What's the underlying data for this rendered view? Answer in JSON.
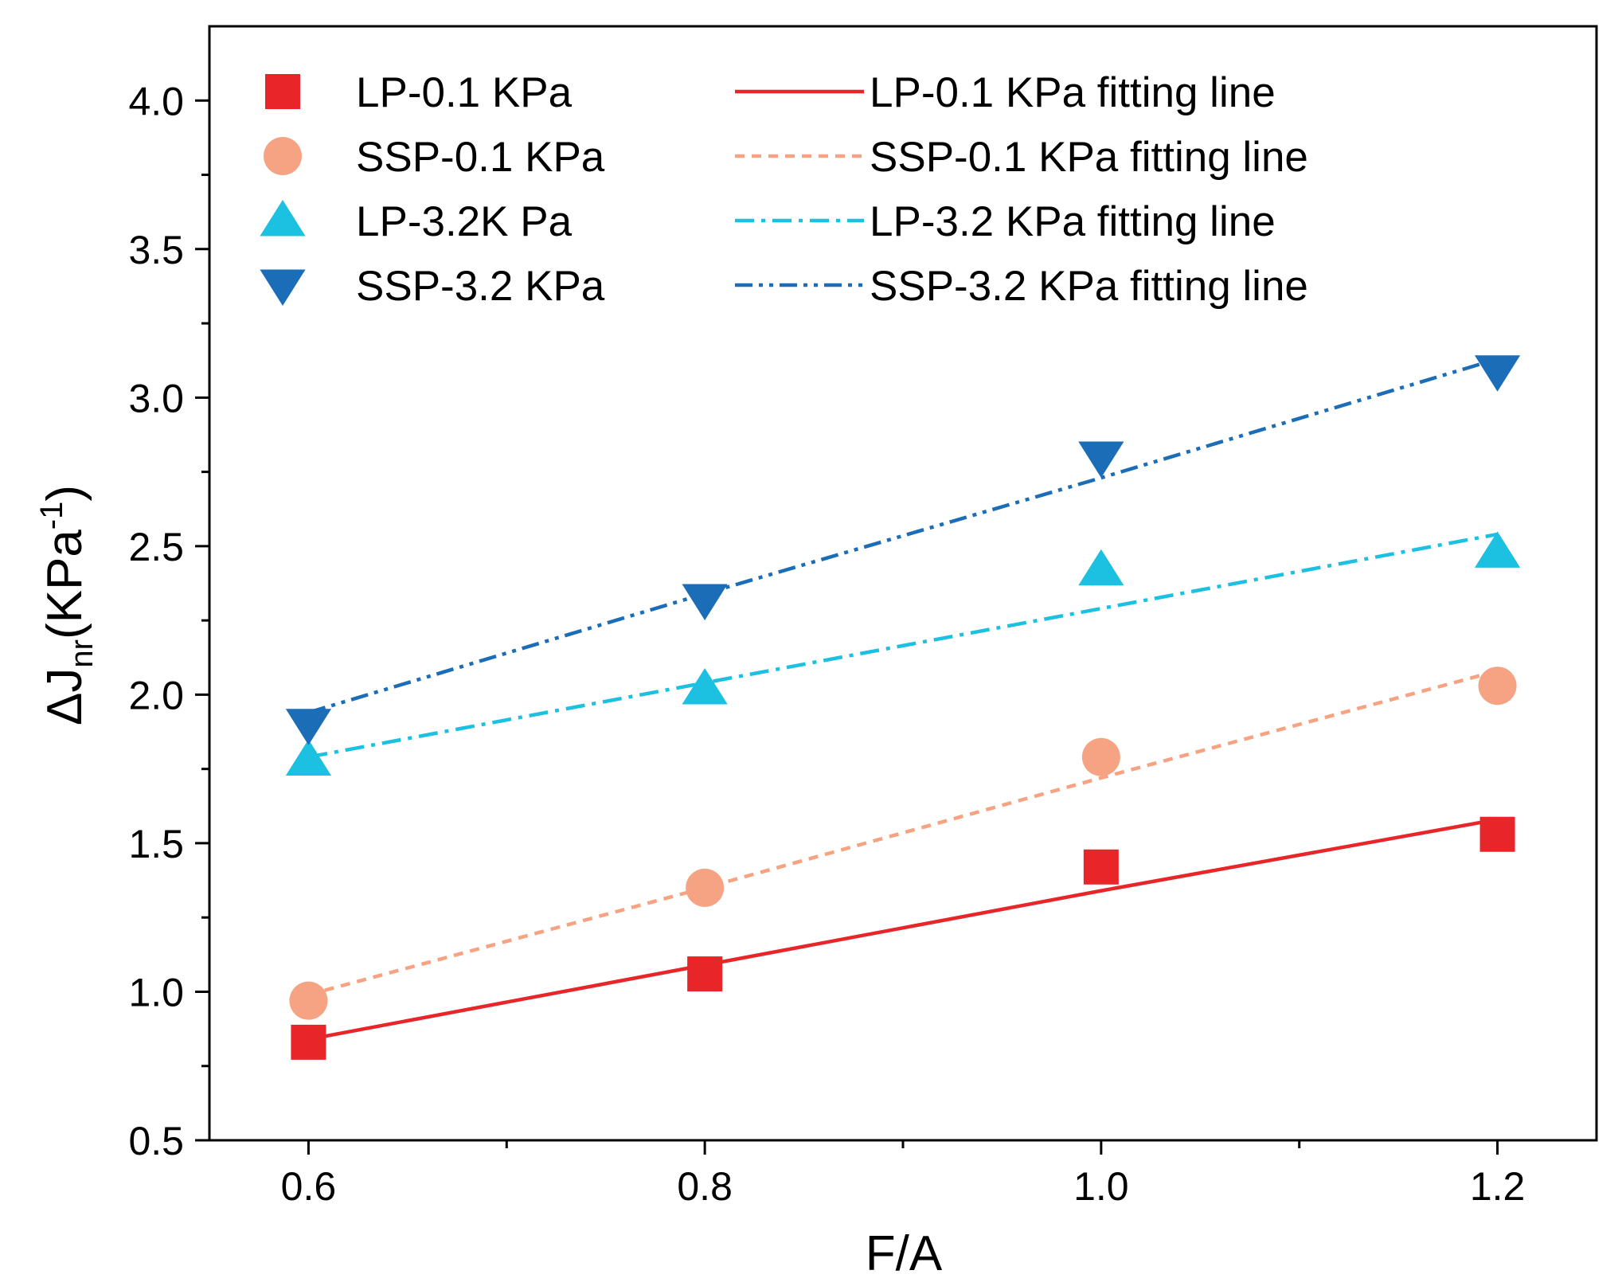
{
  "chart_data": {
    "type": "scatter",
    "xlabel": "F/A",
    "ylabel": {
      "prefix": "ΔJ",
      "subscript": "nr",
      "unit_open": "(KPa",
      "superscript": "-1",
      "unit_close": ")"
    },
    "xlim": [
      0.55,
      1.25
    ],
    "ylim": [
      0.5,
      4.25
    ],
    "x_ticks": [
      0.6,
      0.8,
      1.0,
      1.2
    ],
    "x_tick_labels": [
      "0.6",
      "0.8",
      "1.0",
      "1.2"
    ],
    "x_minor_ticks": [
      0.7,
      0.9,
      1.1
    ],
    "y_ticks": [
      0.5,
      1.0,
      1.5,
      2.0,
      2.5,
      3.0,
      3.5,
      4.0
    ],
    "y_tick_labels": [
      "0.5",
      "1.0",
      "1.5",
      "2.0",
      "2.5",
      "3.0",
      "3.5",
      "4.0"
    ],
    "y_minor_ticks": [
      0.75,
      1.25,
      1.75,
      2.25,
      2.75,
      3.25,
      3.75
    ],
    "grid": false,
    "legend_position": "top-left",
    "x": [
      0.6,
      0.8,
      1.0,
      1.2
    ],
    "series": [
      {
        "name": "LP-0.1 KPa",
        "fit_name": "LP-0.1 KPa fitting line",
        "marker": "square",
        "line_style": "solid",
        "color": "#e8262a",
        "values": [
          0.83,
          1.06,
          1.42,
          1.53
        ],
        "fit": [
          0.84,
          1.09,
          1.34,
          1.58
        ]
      },
      {
        "name": "SSP-0.1 KPa",
        "fit_name": "SSP-0.1 KPa fitting line",
        "marker": "circle",
        "line_style": "dash",
        "color": "#f6a383",
        "values": [
          0.97,
          1.35,
          1.79,
          2.03
        ],
        "fit": [
          0.99,
          1.35,
          1.72,
          2.08
        ]
      },
      {
        "name": "LP-3.2K Pa",
        "fit_name": "LP-3.2 KPa fitting line",
        "marker": "triangle-up",
        "line_style": "dash-dot",
        "color": "#1cc0e0",
        "values": [
          1.78,
          2.02,
          2.42,
          2.48
        ],
        "fit": [
          1.79,
          2.04,
          2.29,
          2.54
        ]
      },
      {
        "name": "SSP-3.2 KPa",
        "fit_name": "SSP-3.2 KPa fitting line",
        "marker": "triangle-down",
        "line_style": "dash-dot-dot",
        "color": "#1b6db8",
        "values": [
          1.9,
          2.32,
          2.8,
          3.09
        ],
        "fit": [
          1.94,
          2.34,
          2.73,
          3.13
        ]
      }
    ]
  }
}
